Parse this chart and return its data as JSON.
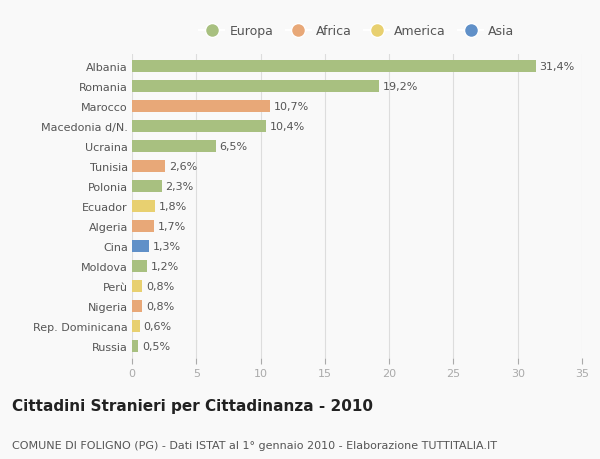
{
  "categories": [
    "Albania",
    "Romania",
    "Marocco",
    "Macedonia d/N.",
    "Ucraina",
    "Tunisia",
    "Polonia",
    "Ecuador",
    "Algeria",
    "Cina",
    "Moldova",
    "Perù",
    "Nigeria",
    "Rep. Dominicana",
    "Russia"
  ],
  "values": [
    31.4,
    19.2,
    10.7,
    10.4,
    6.5,
    2.6,
    2.3,
    1.8,
    1.7,
    1.3,
    1.2,
    0.8,
    0.8,
    0.6,
    0.5
  ],
  "labels": [
    "31,4%",
    "19,2%",
    "10,7%",
    "10,4%",
    "6,5%",
    "2,6%",
    "2,3%",
    "1,8%",
    "1,7%",
    "1,3%",
    "1,2%",
    "0,8%",
    "0,8%",
    "0,6%",
    "0,5%"
  ],
  "continents": [
    "Europa",
    "Europa",
    "Africa",
    "Europa",
    "Europa",
    "Africa",
    "Europa",
    "America",
    "Africa",
    "Asia",
    "Europa",
    "America",
    "Africa",
    "America",
    "Europa"
  ],
  "continent_colors": {
    "Europa": "#a8c080",
    "Africa": "#e8a878",
    "America": "#e8d070",
    "Asia": "#6090c8"
  },
  "legend_order": [
    "Europa",
    "Africa",
    "America",
    "Asia"
  ],
  "title": "Cittadini Stranieri per Cittadinanza - 2010",
  "subtitle": "COMUNE DI FOLIGNO (PG) - Dati ISTAT al 1° gennaio 2010 - Elaborazione TUTTITALIA.IT",
  "xlim": [
    0,
    35
  ],
  "xticks": [
    0,
    5,
    10,
    15,
    20,
    25,
    30,
    35
  ],
  "background_color": "#f9f9f9",
  "grid_color": "#dddddd",
  "bar_height": 0.6,
  "title_fontsize": 11,
  "subtitle_fontsize": 8,
  "label_fontsize": 8,
  "tick_fontsize": 8,
  "legend_fontsize": 9
}
